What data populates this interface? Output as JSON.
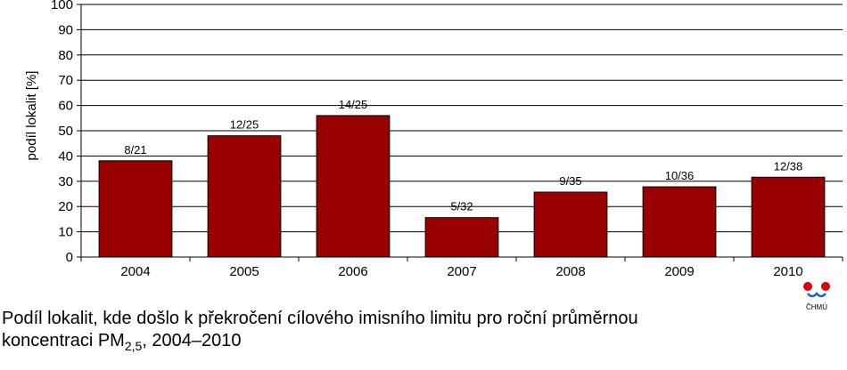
{
  "chart_data": {
    "type": "bar",
    "categories": [
      "2004",
      "2005",
      "2006",
      "2007",
      "2008",
      "2009",
      "2010"
    ],
    "values": [
      38.1,
      48.0,
      56.0,
      15.6,
      25.7,
      27.8,
      31.6
    ],
    "data_labels": [
      "8/21",
      "12/25",
      "14/25",
      "5/32",
      "9/35",
      "10/36",
      "12/38"
    ],
    "ylabel": "podíl lokalit [%]",
    "xlabel": "",
    "ylim": [
      0,
      100
    ],
    "yticks": [
      0,
      10,
      20,
      30,
      40,
      50,
      60,
      70,
      80,
      90,
      100
    ],
    "grid": true,
    "bar_color": "#990000"
  },
  "caption": {
    "line1": "Podíl lokalit, kde došlo k překročení cílového imisního limitu pro roční průměrnou",
    "line2_prefix": "koncentraci PM",
    "subscript": "2,5",
    "line2_suffix": ", 2004–2010"
  },
  "logo": {
    "text": "ČHMÚ",
    "colors": {
      "red": "#e00000",
      "blue": "#1a5fd0"
    }
  }
}
